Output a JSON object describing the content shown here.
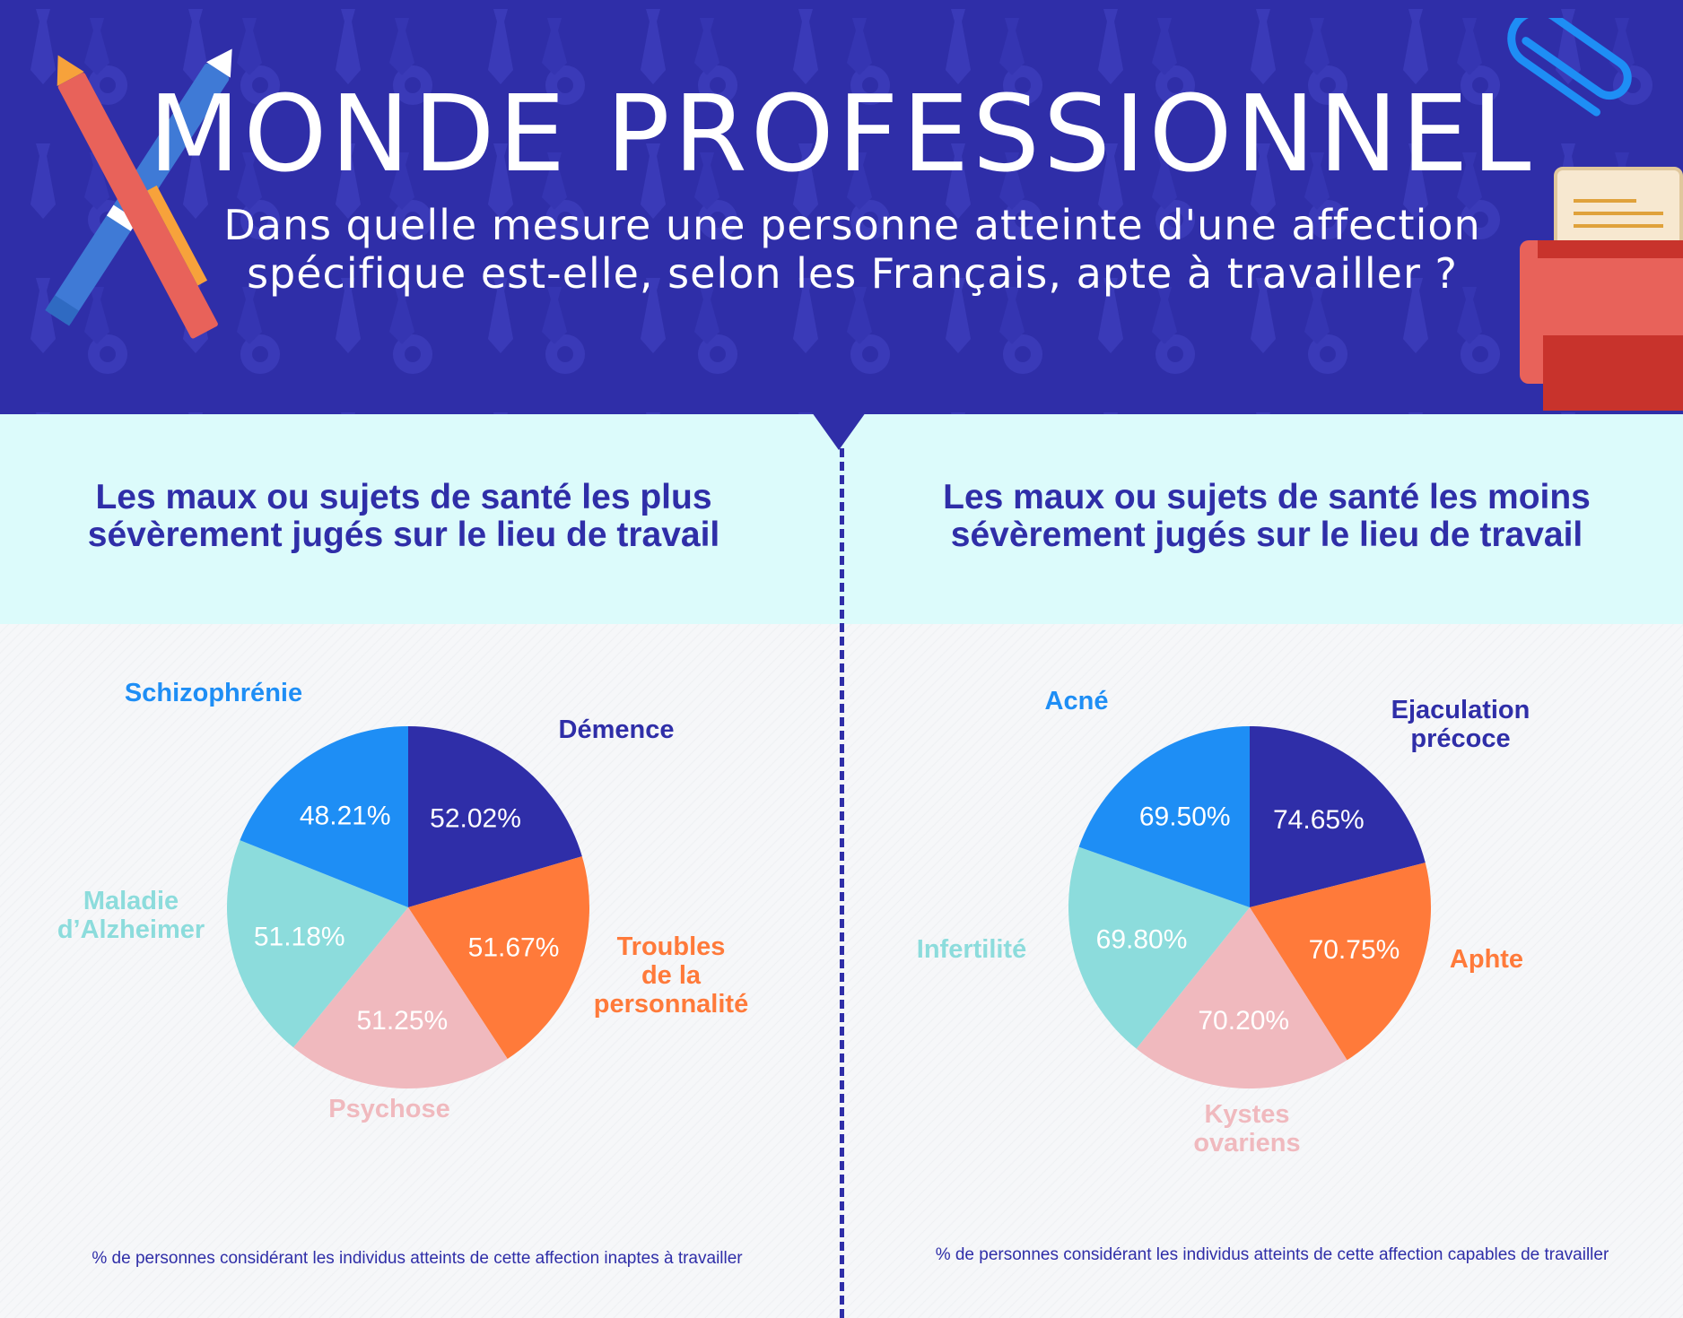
{
  "title": "MONDE PROFESSIONNEL",
  "subtitle_line1": "Dans quelle mesure une personne atteinte d'une affection",
  "subtitle_line2": "spécifique est-elle, selon les Français, apte à travailler ?",
  "left_section": {
    "title_line1": "Les maux ou sujets de santé les plus",
    "title_line2": "sévèrement jugés sur le lieu de travail",
    "footnote": "% de personnes considérant les individus atteints de cette affection inaptes à travailler"
  },
  "right_section": {
    "title_line1": "Les maux ou sujets de santé les moins",
    "title_line2": "sévèrement jugés sur le lieu de travail",
    "footnote": "% de personnes considérant les individus atteints de cette affection capables de travailler"
  },
  "colors": {
    "navy": "#2f2ea8",
    "orange": "#ff7a3a",
    "pink": "#f0b9be",
    "teal": "#8cdcdc",
    "blue": "#1e8ef5"
  },
  "chart_data": [
    {
      "type": "pie",
      "title": "Les maux ou sujets de santé les plus sévèrement jugés sur le lieu de travail",
      "unit": "%",
      "slices": [
        {
          "label": "Démence",
          "label_lines": [
            "Démence"
          ],
          "value": 52.02,
          "value_text": "52.02%",
          "color": "#2f2ea8"
        },
        {
          "label": "Troubles de la personnalité",
          "label_lines": [
            "Troubles",
            "de la",
            "personnalité"
          ],
          "value": 51.67,
          "value_text": "51.67%",
          "color": "#ff7a3a"
        },
        {
          "label": "Psychose",
          "label_lines": [
            "Psychose"
          ],
          "value": 51.25,
          "value_text": "51.25%",
          "color": "#f0b9be"
        },
        {
          "label": "Maladie d’Alzheimer",
          "label_lines": [
            "Maladie",
            "d’Alzheimer"
          ],
          "value": 51.18,
          "value_text": "51.18%",
          "color": "#8cdcdc"
        },
        {
          "label": "Schizophrénie",
          "label_lines": [
            "Schizophrénie"
          ],
          "value": 48.21,
          "value_text": "48.21%",
          "color": "#1e8ef5"
        }
      ]
    },
    {
      "type": "pie",
      "title": "Les maux ou sujets de santé les moins sévèrement jugés sur le lieu de travail",
      "unit": "%",
      "slices": [
        {
          "label": "Ejaculation précoce",
          "label_lines": [
            "Ejaculation",
            "précoce"
          ],
          "value": 74.65,
          "value_text": "74.65%",
          "color": "#2f2ea8"
        },
        {
          "label": "Aphte",
          "label_lines": [
            "Aphte"
          ],
          "value": 70.75,
          "value_text": "70.75%",
          "color": "#ff7a3a"
        },
        {
          "label": "Kystes ovariens",
          "label_lines": [
            "Kystes",
            "ovariens"
          ],
          "value": 70.2,
          "value_text": "70.20%",
          "color": "#f0b9be"
        },
        {
          "label": "Infertilité",
          "label_lines": [
            "Infertilité"
          ],
          "value": 69.8,
          "value_text": "69.80%",
          "color": "#8cdcdc"
        },
        {
          "label": "Acné",
          "label_lines": [
            "Acné"
          ],
          "value": 69.5,
          "value_text": "69.50%",
          "color": "#1e8ef5"
        }
      ]
    }
  ]
}
